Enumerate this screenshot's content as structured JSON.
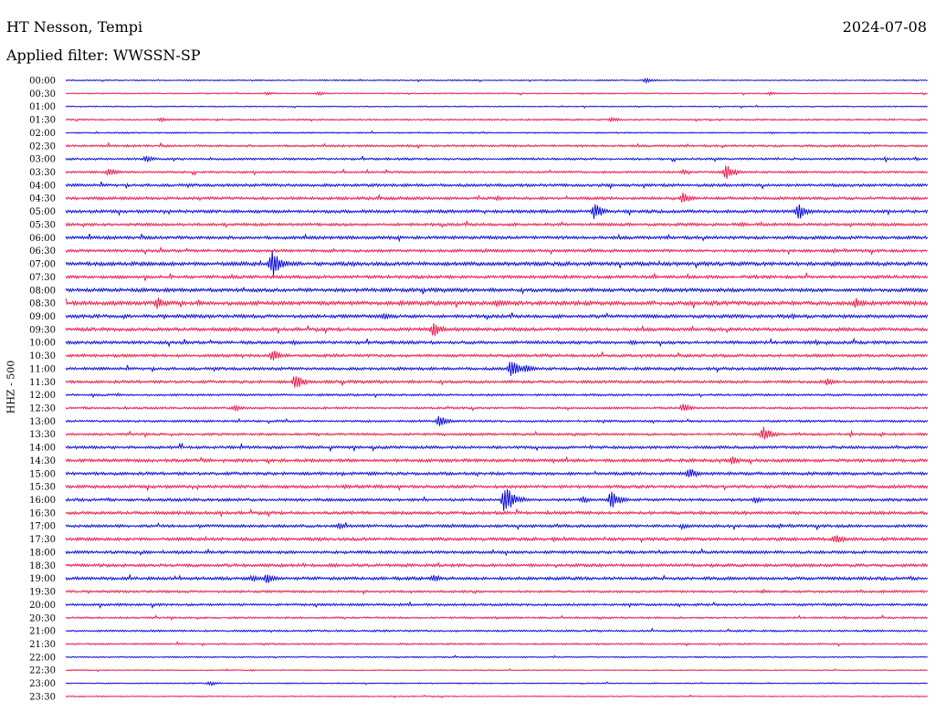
{
  "header": {
    "station": "HT Nesson, Tempi",
    "date": "2024-07-08",
    "filter": "Applied filter: WWSSN-SP",
    "channel": "HHZ - 500"
  },
  "colors": {
    "even": "#0000dd",
    "odd": "#ee1144"
  },
  "chart_data": {
    "type": "line",
    "title": "HT Nesson, Tempi",
    "ylabel": "HHZ - 500",
    "rows": [
      "00:00",
      "00:30",
      "01:00",
      "01:30",
      "02:00",
      "02:30",
      "03:00",
      "03:30",
      "04:00",
      "04:30",
      "05:00",
      "05:30",
      "06:00",
      "06:30",
      "07:00",
      "07:30",
      "08:00",
      "08:30",
      "09:00",
      "09:30",
      "10:00",
      "10:30",
      "11:00",
      "11:30",
      "12:00",
      "12:30",
      "13:00",
      "13:30",
      "14:00",
      "14:30",
      "15:00",
      "15:30",
      "16:00",
      "16:30",
      "17:00",
      "17:30",
      "18:00",
      "18:30",
      "19:00",
      "19:30",
      "20:00",
      "20:30",
      "21:00",
      "21:30",
      "22:00",
      "22:30",
      "23:00",
      "23:30"
    ],
    "row_duration_minutes": 30,
    "x_range_minutes": [
      0,
      30
    ],
    "noise": [
      0.5,
      0.5,
      0.5,
      0.7,
      0.6,
      0.9,
      0.9,
      0.9,
      1.2,
      1.2,
      1.3,
      1.2,
      1.3,
      1.2,
      1.6,
      1.3,
      1.5,
      1.7,
      1.4,
      1.4,
      1.3,
      1.2,
      1.2,
      1.2,
      0.9,
      0.9,
      0.9,
      1.0,
      1.2,
      1.3,
      1.3,
      1.3,
      1.2,
      1.3,
      1.2,
      1.3,
      1.2,
      1.3,
      1.3,
      1.0,
      1.0,
      0.8,
      0.8,
      0.7,
      0.6,
      0.5,
      0.5,
      0.5
    ],
    "events": [
      {
        "row": 0,
        "minute": 20.2,
        "amplitude": 3
      },
      {
        "row": 1,
        "minute": 7.0,
        "amplitude": 2
      },
      {
        "row": 1,
        "minute": 8.8,
        "amplitude": 2
      },
      {
        "row": 1,
        "minute": 24.5,
        "amplitude": 2
      },
      {
        "row": 3,
        "minute": 3.3,
        "amplitude": 3
      },
      {
        "row": 3,
        "minute": 19.0,
        "amplitude": 3
      },
      {
        "row": 6,
        "minute": 2.8,
        "amplitude": 4
      },
      {
        "row": 7,
        "minute": 1.5,
        "amplitude": 5
      },
      {
        "row": 7,
        "minute": 23.0,
        "amplitude": 9
      },
      {
        "row": 7,
        "minute": 21.5,
        "amplitude": 3
      },
      {
        "row": 9,
        "minute": 21.5,
        "amplitude": 7
      },
      {
        "row": 9,
        "minute": 15.0,
        "amplitude": 3
      },
      {
        "row": 10,
        "minute": 18.4,
        "amplitude": 10
      },
      {
        "row": 10,
        "minute": 25.5,
        "amplitude": 10
      },
      {
        "row": 11,
        "minute": 23.5,
        "amplitude": 3
      },
      {
        "row": 14,
        "minute": 7.2,
        "amplitude": 16
      },
      {
        "row": 17,
        "minute": 3.2,
        "amplitude": 7
      },
      {
        "row": 17,
        "minute": 15.0,
        "amplitude": 4
      },
      {
        "row": 17,
        "minute": 27.5,
        "amplitude": 6
      },
      {
        "row": 18,
        "minute": 11.1,
        "amplitude": 4
      },
      {
        "row": 18,
        "minute": 25.3,
        "amplitude": 3
      },
      {
        "row": 19,
        "minute": 12.8,
        "amplitude": 9
      },
      {
        "row": 20,
        "minute": 7.9,
        "amplitude": 3
      },
      {
        "row": 20,
        "minute": 19.7,
        "amplitude": 3
      },
      {
        "row": 21,
        "minute": 7.2,
        "amplitude": 7
      },
      {
        "row": 22,
        "minute": 15.5,
        "amplitude": 12
      },
      {
        "row": 22,
        "minute": 16.0,
        "amplitude": 6
      },
      {
        "row": 23,
        "minute": 8.0,
        "amplitude": 9
      },
      {
        "row": 23,
        "minute": 26.5,
        "amplitude": 4
      },
      {
        "row": 25,
        "minute": 5.9,
        "amplitude": 4
      },
      {
        "row": 25,
        "minute": 21.5,
        "amplitude": 5
      },
      {
        "row": 26,
        "minute": 13.0,
        "amplitude": 7
      },
      {
        "row": 27,
        "minute": 24.3,
        "amplitude": 9
      },
      {
        "row": 29,
        "minute": 23.2,
        "amplitude": 5
      },
      {
        "row": 30,
        "minute": 21.7,
        "amplitude": 7
      },
      {
        "row": 31,
        "minute": 9.7,
        "amplitude": 3
      },
      {
        "row": 32,
        "minute": 15.3,
        "amplitude": 18
      },
      {
        "row": 32,
        "minute": 19.0,
        "amplitude": 11
      },
      {
        "row": 32,
        "minute": 18.0,
        "amplitude": 4
      },
      {
        "row": 32,
        "minute": 24.0,
        "amplitude": 4
      },
      {
        "row": 34,
        "minute": 9.5,
        "amplitude": 4
      },
      {
        "row": 34,
        "minute": 21.5,
        "amplitude": 3
      },
      {
        "row": 35,
        "minute": 26.8,
        "amplitude": 6
      },
      {
        "row": 35,
        "minute": 17.0,
        "amplitude": 3
      },
      {
        "row": 38,
        "minute": 6.5,
        "amplitude": 4
      },
      {
        "row": 38,
        "minute": 7.0,
        "amplitude": 6
      },
      {
        "row": 38,
        "minute": 12.8,
        "amplitude": 5
      },
      {
        "row": 46,
        "minute": 5.0,
        "amplitude": 3
      }
    ]
  }
}
